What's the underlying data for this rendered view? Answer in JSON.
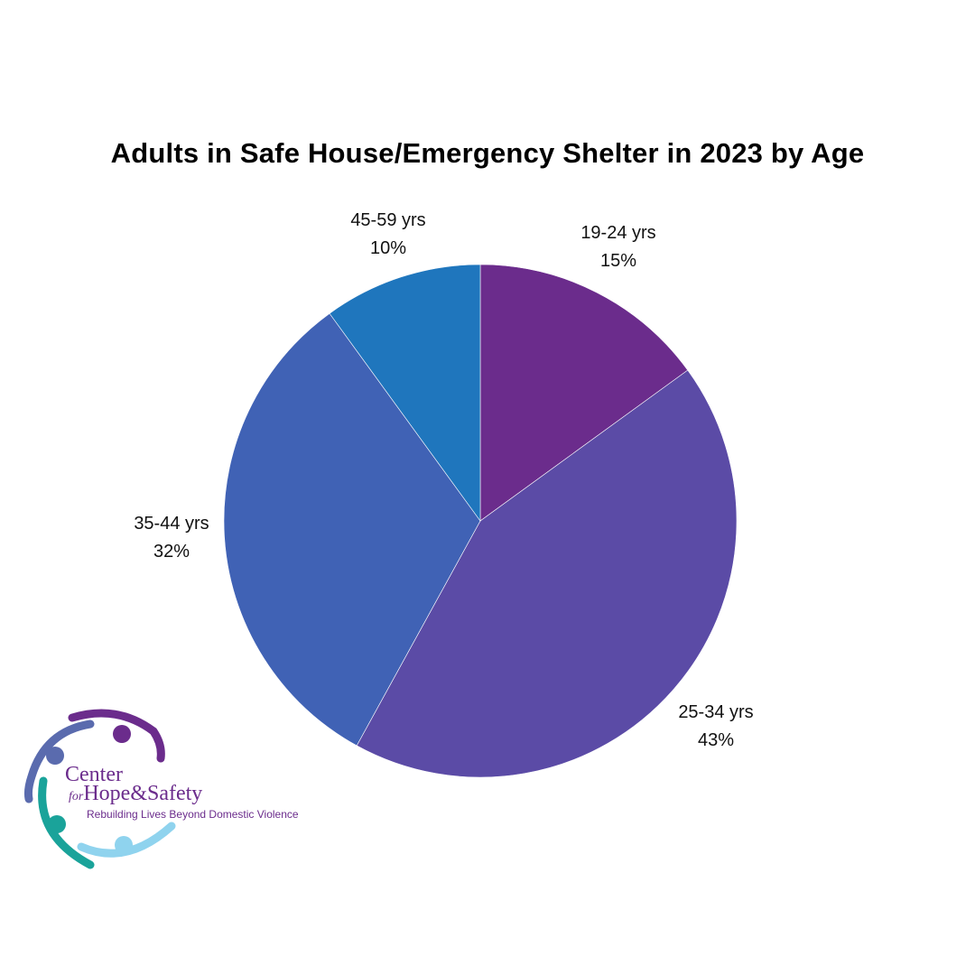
{
  "title": "Adults in Safe House/Emergency Shelter in 2023 by Age",
  "chart_data": {
    "type": "pie",
    "title": "Adults in Safe House/Emergency Shelter in 2023 by Age",
    "categories": [
      "19-24 yrs",
      "25-34 yrs",
      "35-44 yrs",
      "45-59 yrs"
    ],
    "values": [
      15,
      43,
      32,
      10
    ],
    "unit": "%",
    "colors": [
      "#6B2C8C",
      "#5B4BA6",
      "#4062B5",
      "#1F76BD"
    ],
    "start_angle": "12 o'clock, clockwise"
  },
  "labels": [
    {
      "name": "19-24 yrs",
      "pct": "15%"
    },
    {
      "name": "25-34 yrs",
      "pct": "43%"
    },
    {
      "name": "35-44 yrs",
      "pct": "32%"
    },
    {
      "name": "45-59 yrs",
      "pct": "10%"
    }
  ],
  "logo": {
    "line1": "Center",
    "for": "for",
    "line2": "Hope&Safety",
    "tagline": "Rebuilding Lives Beyond Domestic Violence"
  }
}
